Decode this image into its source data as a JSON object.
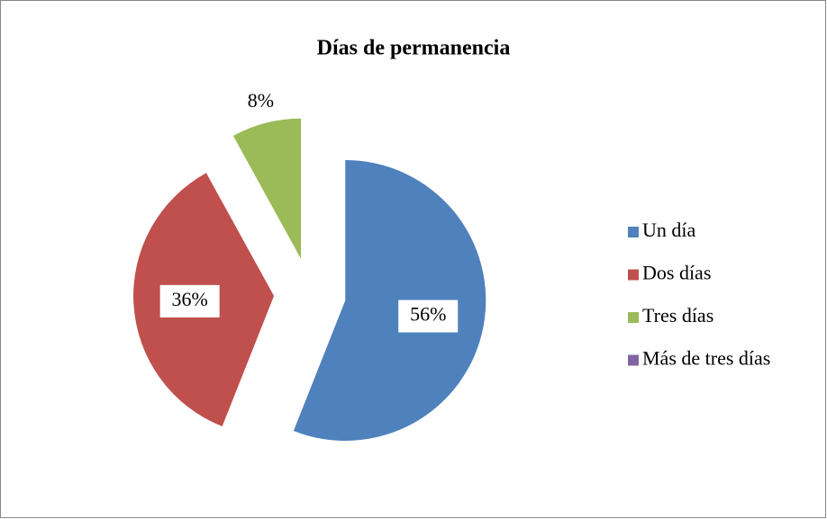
{
  "chart_data": {
    "type": "pie",
    "title": "Días de permanencia",
    "categories": [
      "Un día",
      "Dos días",
      "Tres días",
      "Más de tres días"
    ],
    "values": [
      56,
      36,
      8,
      0
    ],
    "value_labels": [
      "56%",
      "36%",
      "8%",
      null
    ],
    "colors": [
      "#4f81bd",
      "#c0504d",
      "#9bbb59",
      "#8064a2"
    ],
    "exploded": true,
    "legend": "right"
  }
}
